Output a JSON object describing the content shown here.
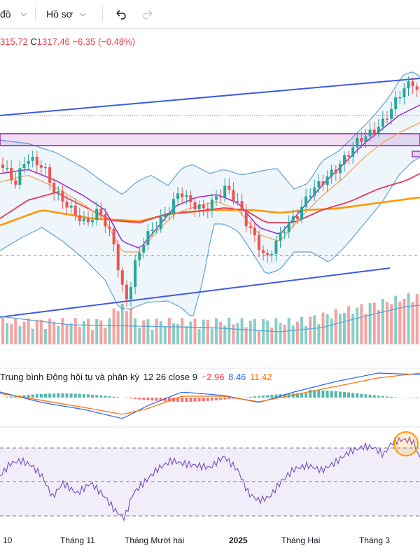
{
  "toolbar": {
    "first_dropdown": "đồ",
    "profile_dropdown": "Hồ sơ",
    "undo_icon": "undo-icon",
    "redo_icon": "redo-icon"
  },
  "legend": {
    "low_partial": "315.72",
    "close_label": "C",
    "close_value": "1317.46",
    "change": "−6.35",
    "change_pct": "(−0.48%)"
  },
  "macd": {
    "name": "Trung bình Động hội tụ và phân kỳ",
    "params": "12 26 close 9",
    "hist": "−2.96",
    "macd": "8.46",
    "signal": "11.42"
  },
  "time_axis": [
    "10",
    "Tháng 11",
    "Tháng Mười hai",
    "2025",
    "Tháng Hai",
    "Tháng 3"
  ],
  "colors": {
    "up": "#26a69a",
    "down": "#ef5350",
    "trendline": "#3d5be0",
    "zone": "#9c27b0",
    "ma200": "#ff9800",
    "ma100": "#e63950",
    "ma20": "#9c27d0",
    "bollinger": "#5fa3d8",
    "rsi": "#7e57c2"
  },
  "chart_data": {
    "type": "candlestick",
    "title": "",
    "x": [
      "10",
      "Tháng 11",
      "Tháng Mười hai",
      "2025",
      "Tháng Hai",
      "Tháng 3"
    ],
    "y_visible_range": [
      1215,
      1330
    ],
    "last_close": 1317.46,
    "change": -6.35,
    "change_pct": -0.48,
    "indicators": [
      "Bollinger Bands",
      "MA",
      "Volume",
      "MACD 12 26 close 9",
      "RSI"
    ],
    "macd_values": {
      "histogram": -2.96,
      "macd": 8.46,
      "signal": 11.42
    }
  }
}
